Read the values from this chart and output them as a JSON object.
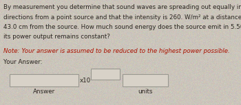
{
  "background_color": "#cbc5bb",
  "text_lines": [
    "By measurement you determine that sound waves are spreading out equally in all",
    "directions from a point source and that the intensity is 260. W/m² at a distance of",
    "43.0 cm from the source. How much sound energy does the source emit in 5.50 ms if",
    "its power output remains constant?"
  ],
  "note_line": "Note: Your answer is assumed to be reduced to the highest power possible.",
  "your_answer_label": "Your Answer:",
  "x10_label": "x10",
  "answer_label": "Answer",
  "units_label": "units",
  "main_text_color": "#2a2520",
  "note_text_color": "#aa1100",
  "label_text_color": "#2a2520",
  "box_facecolor": "#d8d2c8",
  "box_edgecolor": "#999890",
  "main_fontsize": 6.3,
  "note_fontsize": 6.3,
  "label_fontsize": 6.3
}
